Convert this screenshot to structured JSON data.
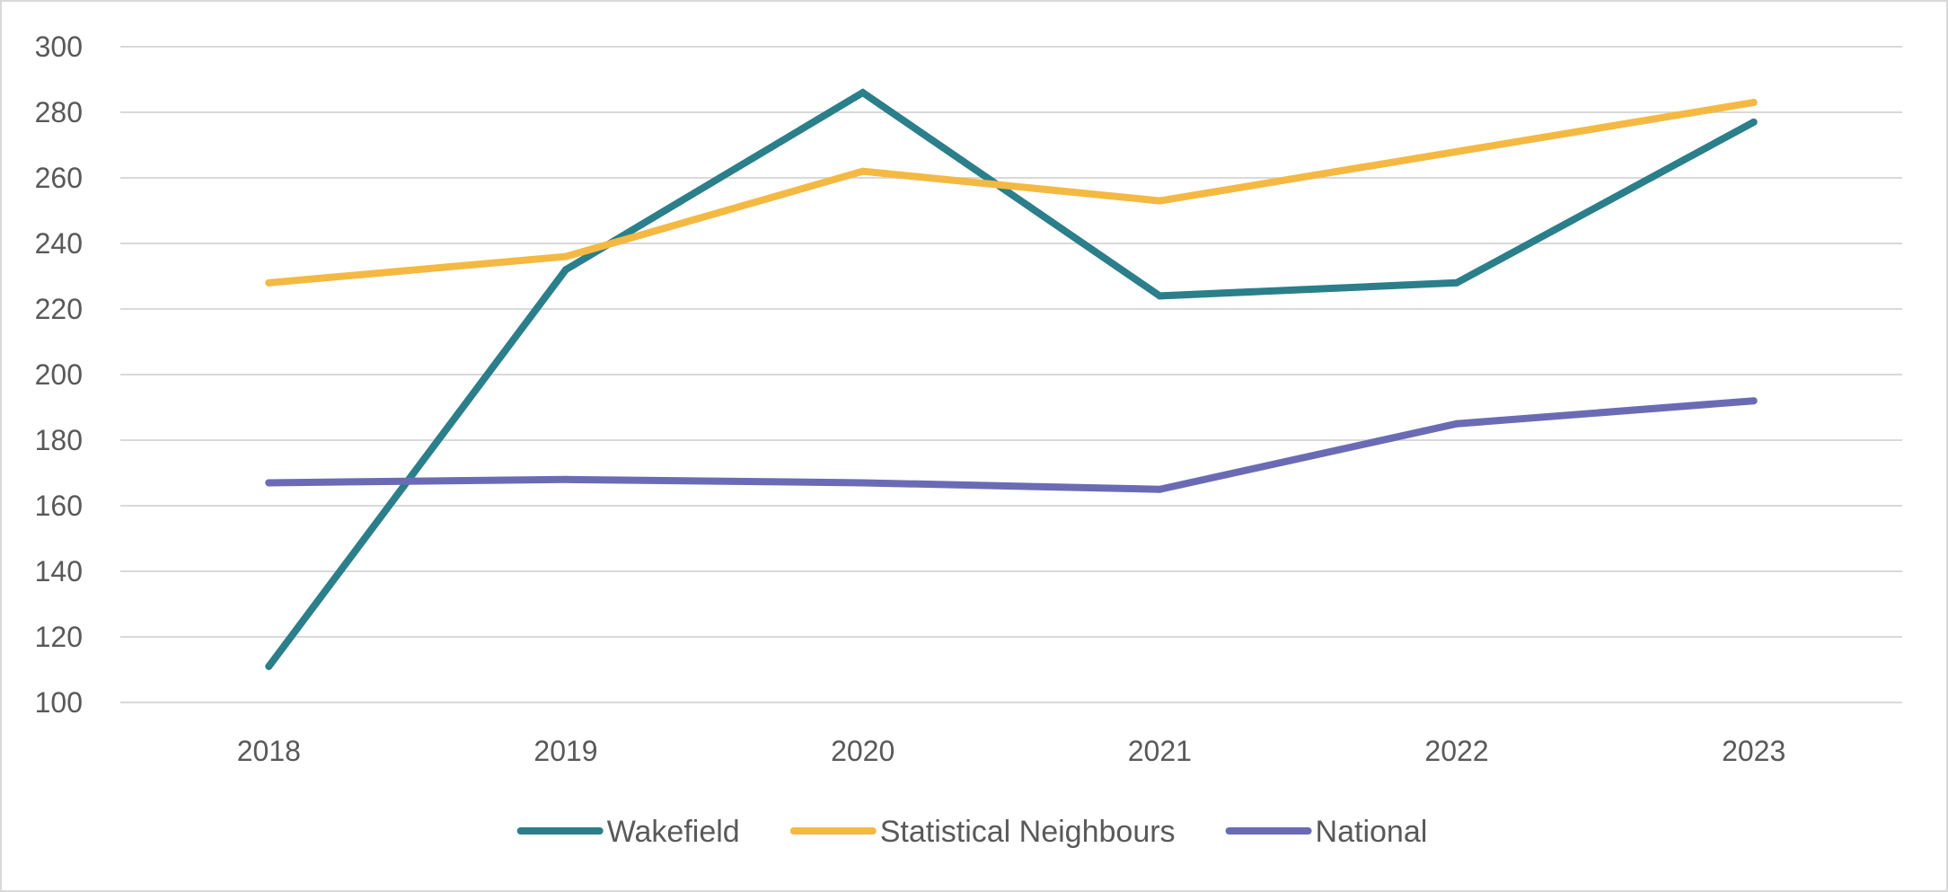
{
  "chart_data": {
    "type": "line",
    "title": "",
    "xlabel": "",
    "ylabel": "",
    "x": [
      "2018",
      "2019",
      "2020",
      "2021",
      "2022",
      "2023"
    ],
    "ylim": [
      100,
      300
    ],
    "y_ticks": [
      "100",
      "120",
      "140",
      "160",
      "180",
      "200",
      "220",
      "240",
      "260",
      "280",
      "300"
    ],
    "grid": "horizontal",
    "legend_position": "bottom",
    "series": [
      {
        "name": "Wakefield",
        "color": "#2a7f8a",
        "values": [
          111,
          232,
          286,
          224,
          228,
          277
        ]
      },
      {
        "name": "Statistical Neighbours",
        "color": "#f4b942",
        "values": [
          228,
          236,
          262,
          253,
          268,
          283
        ]
      },
      {
        "name": "National",
        "color": "#6b6bb5",
        "values": [
          167,
          168,
          167,
          165,
          185,
          192
        ]
      }
    ]
  }
}
